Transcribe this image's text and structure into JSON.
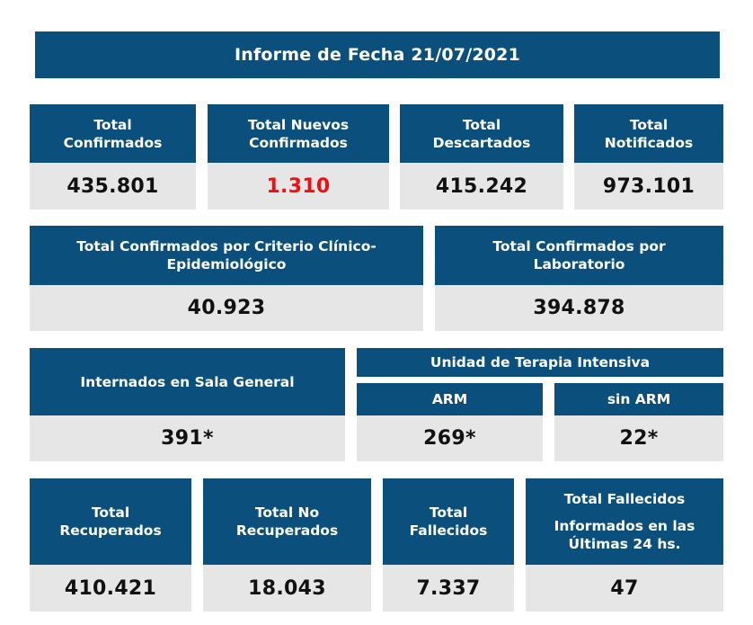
{
  "report_title": "Informe de Fecha 21/07/2021",
  "colors": {
    "header_blue": "#0b4f7c",
    "value_bg": "#e6e6e6",
    "highlight_red": "#f01010"
  },
  "row1": [
    {
      "label": "Total Confirmados",
      "value": "435.801"
    },
    {
      "label": "Total Nuevos Confirmados",
      "value": "1.310"
    },
    {
      "label": "Total Descartados",
      "value": "415.242"
    },
    {
      "label": "Total Notificados",
      "value": "973.101"
    }
  ],
  "row2": [
    {
      "label": "Total Confirmados por Criterio Clínico-Epidemiológico",
      "value": "40.923"
    },
    {
      "label": "Total Confirmados por Laboratorio",
      "value": "394.878"
    }
  ],
  "row3": {
    "sala_general": {
      "label": "Internados en Sala General",
      "value": "391*"
    },
    "uti": {
      "label": "Unidad de Terapia Intensiva",
      "arm": {
        "label": "ARM",
        "value": "269*"
      },
      "sin_arm": {
        "label": "sin ARM",
        "value": "22*"
      }
    }
  },
  "row4": [
    {
      "label": "Total Recuperados",
      "value": "410.421"
    },
    {
      "label": "Total No Recuperados",
      "value": "18.043"
    },
    {
      "label": "Total Fallecidos",
      "value": "7.337"
    },
    {
      "label": "Total Fallecidos",
      "sublabel": "Informados en las Últimas 24 hs.",
      "value": "47"
    }
  ]
}
